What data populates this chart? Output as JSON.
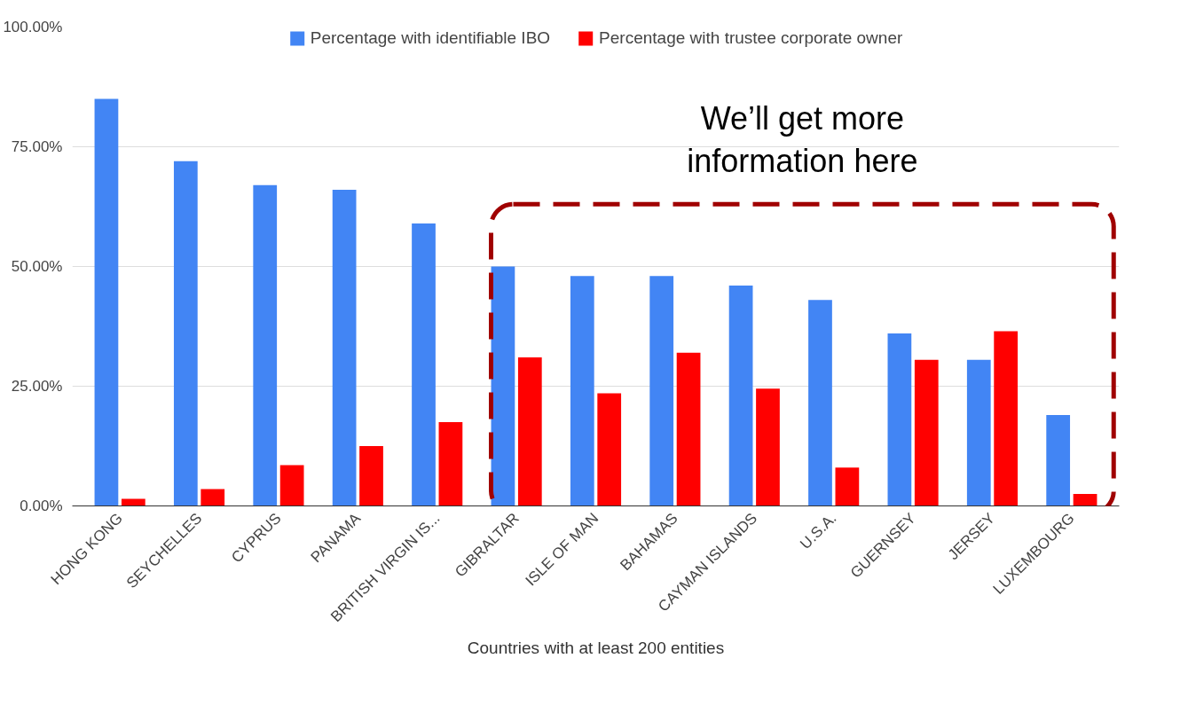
{
  "chart_data": {
    "type": "bar",
    "xlabel": "Countries with at least 200 entities",
    "categories": [
      "HONG KONG",
      "SEYCHELLES",
      "CYPRUS",
      "PANAMA",
      "BRITISH VIRGIN IS...",
      "GIBRALTAR",
      "ISLE OF MAN",
      "BAHAMAS",
      "CAYMAN ISLANDS",
      "U.S.A.",
      "GUERNSEY",
      "JERSEY",
      "LUXEMBOURG"
    ],
    "series": [
      {
        "name": "Percentage with identifiable IBO",
        "color": "#4285f4",
        "values": [
          85,
          72,
          67,
          66,
          59,
          50,
          48,
          48,
          46,
          43,
          36,
          30.5,
          19
        ]
      },
      {
        "name": "Percentage with trustee corporate owner",
        "color": "#ff0000",
        "values": [
          1.5,
          3.5,
          8.5,
          12.5,
          17.5,
          31,
          23.5,
          32,
          24.5,
          8,
          30.5,
          36.5,
          2.5
        ]
      }
    ],
    "ylim": [
      0,
      100
    ],
    "yticks": [
      {
        "value": 0,
        "label": "0.00%"
      },
      {
        "value": 25,
        "label": "25.00%"
      },
      {
        "value": 50,
        "label": "50.00%"
      },
      {
        "value": 75,
        "label": "75.00%"
      },
      {
        "value": 100,
        "label": "100.00%"
      }
    ],
    "grid": "y",
    "legend": "top",
    "annotations": [
      "We’ll get more\ninformation here"
    ]
  }
}
